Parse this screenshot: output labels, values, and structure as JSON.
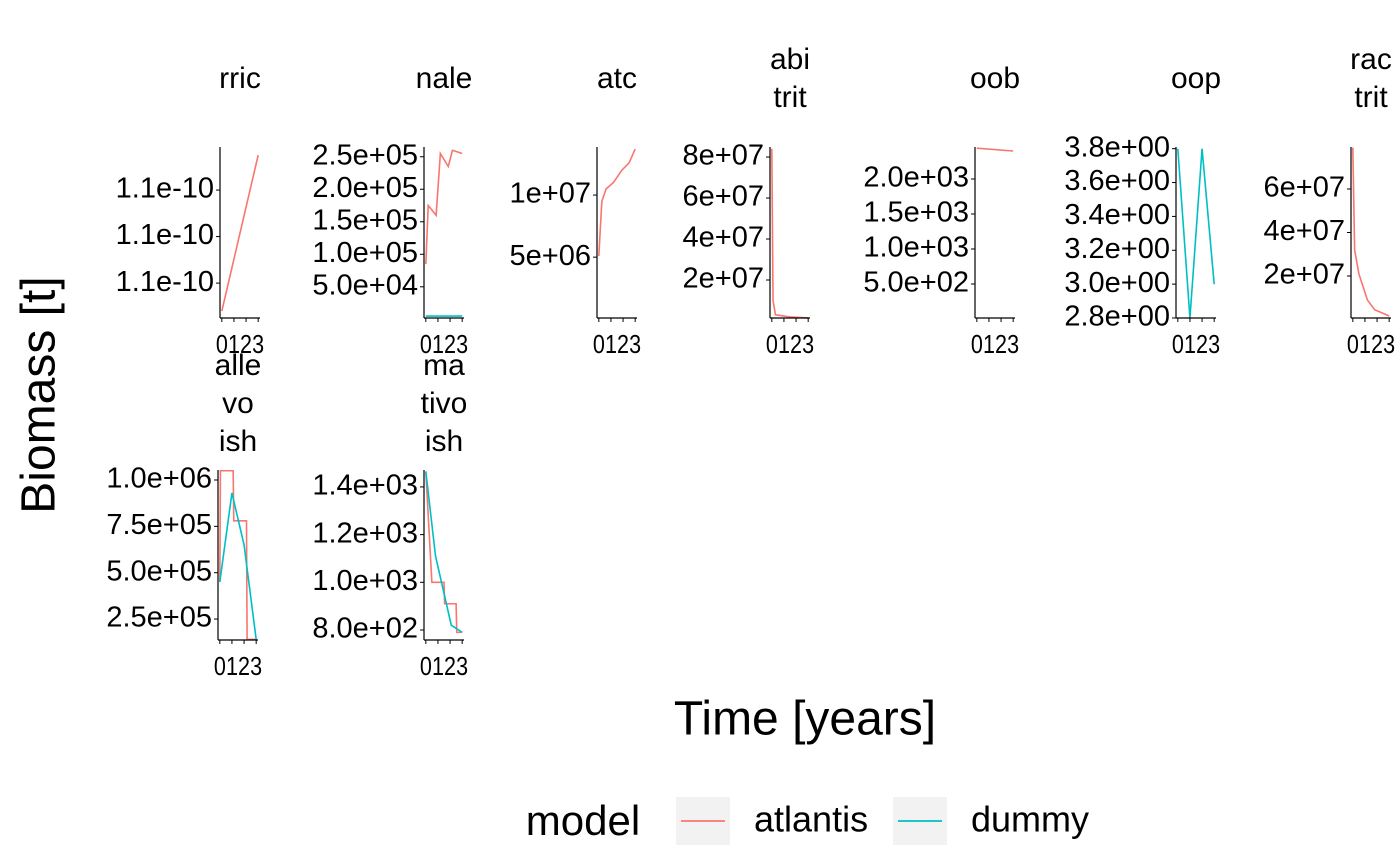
{
  "chart_data": [
    {
      "type": "line",
      "title": [
        "rric"
      ],
      "xlim": [
        -0.15,
        3.15
      ],
      "xticks": [
        0,
        1,
        2,
        3
      ],
      "ylim": [
        1.065e-10,
        1.1385e-10
      ],
      "yticks": [
        {
          "value": 1.08e-10,
          "label": "1.1e-10"
        },
        {
          "value": 1.1e-10,
          "label": "1.1e-10"
        },
        {
          "value": 1.12e-10,
          "label": "1.1e-10"
        }
      ],
      "series": [
        {
          "name": "atlantis",
          "color": "#F8766D",
          "x": [
            0,
            3
          ],
          "values": [
            1.068e-10,
            1.135e-10
          ]
        }
      ]
    },
    {
      "type": "line",
      "title": [
        "nale"
      ],
      "xlim": [
        -0.15,
        3.15
      ],
      "xticks": [
        0,
        1,
        2,
        3
      ],
      "ylim": [
        2000,
        265000
      ],
      "yticks": [
        {
          "value": 50000,
          "label": "5.0e+04"
        },
        {
          "value": 100000,
          "label": "1.0e+05"
        },
        {
          "value": 150000,
          "label": "1.5e+05"
        },
        {
          "value": 200000,
          "label": "2.0e+05"
        },
        {
          "value": 250000,
          "label": "2.5e+05"
        }
      ],
      "series": [
        {
          "name": "atlantis",
          "color": "#F8766D",
          "x": [
            0,
            0.2,
            0.85,
            1.2,
            1.85,
            2.2,
            3
          ],
          "values": [
            85000,
            175000,
            160000,
            255000,
            235000,
            260000,
            255000
          ]
        },
        {
          "name": "dummy",
          "color": "#00BFC4",
          "x": [
            0,
            1,
            2,
            3
          ],
          "values": [
            5000,
            5000,
            5000,
            5000
          ]
        }
      ]
    },
    {
      "type": "line",
      "title": [
        "atc"
      ],
      "xlim": [
        -0.15,
        3.15
      ],
      "xticks": [
        0,
        1,
        2,
        3
      ],
      "ylim": [
        100000,
        13870000
      ],
      "yticks": [
        {
          "value": 5000000,
          "label": "5e+06"
        },
        {
          "value": 10000000,
          "label": "1e+07"
        }
      ],
      "series": [
        {
          "name": "atlantis",
          "color": "#F8766D",
          "x": [
            0,
            0.25,
            0.6,
            1.2,
            1.9,
            2.5,
            3
          ],
          "values": [
            5100000,
            9500000,
            10500000,
            11000000,
            12000000,
            12600000,
            13700000
          ]
        }
      ]
    },
    {
      "type": "line",
      "title": [
        "abi",
        "trit"
      ],
      "xlim": [
        -0.15,
        3.15
      ],
      "xticks": [
        0,
        1,
        2,
        3
      ],
      "ylim": [
        1460000,
        84900000
      ],
      "yticks": [
        {
          "value": 20000000,
          "label": "2e+07"
        },
        {
          "value": 40000000,
          "label": "4e+07"
        },
        {
          "value": 60000000,
          "label": "6e+07"
        },
        {
          "value": 80000000,
          "label": "8e+07"
        }
      ],
      "series": [
        {
          "name": "atlantis",
          "color": "#F8766D",
          "x": [
            0,
            0.1,
            0.3,
            1.5,
            3
          ],
          "values": [
            84000000,
            10000000,
            3000000,
            2000000,
            1500000
          ]
        }
      ]
    },
    {
      "type": "line",
      "title": [
        "oob"
      ],
      "xlim": [
        -0.15,
        3.15
      ],
      "xticks": [
        0,
        1,
        2,
        3
      ],
      "ylim": [
        14,
        2457
      ],
      "yticks": [
        {
          "value": 500,
          "label": "5.0e+02"
        },
        {
          "value": 1000,
          "label": "1.0e+03"
        },
        {
          "value": 1500,
          "label": "1.5e+03"
        },
        {
          "value": 2000,
          "label": "2.0e+03"
        }
      ],
      "series": [
        {
          "name": "atlantis",
          "color": "#F8766D",
          "x": [
            0,
            3
          ],
          "values": [
            2440,
            2400
          ]
        }
      ]
    },
    {
      "type": "line",
      "title": [
        "oop"
      ],
      "xlim": [
        -0.15,
        3.15
      ],
      "xticks": [
        0,
        1,
        2,
        3
      ],
      "ylim": [
        2.8,
        3.81
      ],
      "yticks": [
        {
          "value": 2.8,
          "label": "2.8e+00"
        },
        {
          "value": 3.0,
          "label": "3.0e+00"
        },
        {
          "value": 3.2,
          "label": "3.2e+00"
        },
        {
          "value": 3.4,
          "label": "3.4e+00"
        },
        {
          "value": 3.6,
          "label": "3.6e+00"
        },
        {
          "value": 3.8,
          "label": "3.8e+00"
        }
      ],
      "series": [
        {
          "name": "dummy",
          "color": "#00BFC4",
          "x": [
            0,
            1,
            2,
            3
          ],
          "values": [
            3.8,
            2.8,
            3.8,
            3.0
          ]
        }
      ]
    },
    {
      "type": "line",
      "title": [
        "rac",
        "trit"
      ],
      "xlim": [
        -0.15,
        3.15
      ],
      "xticks": [
        0,
        1,
        2,
        3
      ],
      "ylim": [
        690000,
        79300000
      ],
      "yticks": [
        {
          "value": 20000000,
          "label": "2e+07"
        },
        {
          "value": 40000000,
          "label": "4e+07"
        },
        {
          "value": 60000000,
          "label": "6e+07"
        }
      ],
      "series": [
        {
          "name": "atlantis",
          "color": "#F8766D",
          "x": [
            0,
            0.15,
            0.5,
            1.2,
            1.8,
            3
          ],
          "values": [
            79000000,
            32000000,
            21000000,
            9000000,
            4500000,
            1600000
          ]
        }
      ]
    },
    {
      "type": "line",
      "title": [
        "alle",
        "vo",
        "ish"
      ],
      "xlim": [
        -0.15,
        3.15
      ],
      "xticks": [
        0,
        1,
        2,
        3
      ],
      "ylim": [
        137000,
        1054000
      ],
      "yticks": [
        {
          "value": 250000,
          "label": "2.5e+05"
        },
        {
          "value": 500000,
          "label": "5.0e+05"
        },
        {
          "value": 750000,
          "label": "7.5e+05"
        },
        {
          "value": 1000000,
          "label": "1.0e+06"
        }
      ],
      "series": [
        {
          "name": "atlantis",
          "color": "#F8766D",
          "x": [
            0,
            0.05,
            1.1,
            1.15,
            2.2,
            2.25,
            3
          ],
          "values": [
            450000,
            1050000,
            1050000,
            780000,
            780000,
            140000,
            140000
          ]
        },
        {
          "name": "dummy",
          "color": "#00BFC4",
          "x": [
            0,
            1,
            2,
            3
          ],
          "values": [
            450000,
            930000,
            650000,
            140000
          ]
        }
      ]
    },
    {
      "type": "line",
      "title": [
        "ma",
        "tivo",
        "ish"
      ],
      "xlim": [
        -0.15,
        3.15
      ],
      "xticks": [
        0,
        1,
        2,
        3
      ],
      "ylim": [
        758,
        1471
      ],
      "yticks": [
        {
          "value": 800,
          "label": "8.0e+02"
        },
        {
          "value": 1000,
          "label": "1.0e+03"
        },
        {
          "value": 1200,
          "label": "1.2e+03"
        },
        {
          "value": 1400,
          "label": "1.4e+03"
        }
      ],
      "series": [
        {
          "name": "atlantis",
          "color": "#F8766D",
          "x": [
            0,
            0.5,
            1.5,
            1.55,
            2.5,
            2.55,
            3
          ],
          "values": [
            1465,
            1000,
            1000,
            910,
            910,
            790,
            790
          ]
        },
        {
          "name": "dummy",
          "color": "#00BFC4",
          "x": [
            0,
            0.8,
            2.1,
            3
          ],
          "values": [
            1465,
            1110,
            820,
            790
          ]
        }
      ]
    }
  ],
  "shared": {
    "ylabel": "Biomass [t]",
    "xlabel": "Time [years]",
    "legend": {
      "title": "model",
      "entries": [
        {
          "name": "atlantis",
          "color": "#F8766D"
        },
        {
          "name": "dummy",
          "color": "#00BFC4"
        }
      ]
    }
  }
}
